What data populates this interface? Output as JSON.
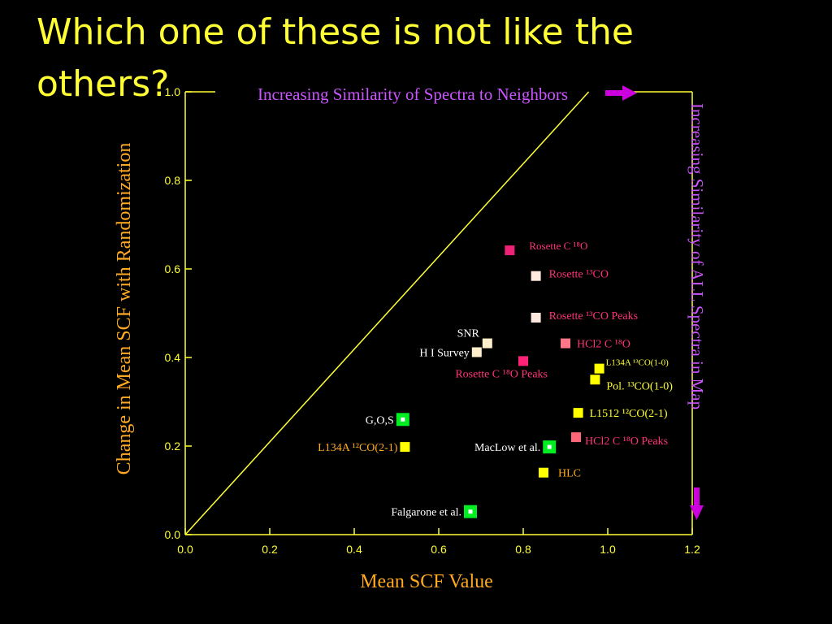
{
  "slide": {
    "title": "Which one of these is not like the others?"
  },
  "colors": {
    "axes": "#ffff33",
    "ticks_text": "#ffff33",
    "title": "#ffff33",
    "annotation": "#cc55ff",
    "arrow": "#cc00dd",
    "label_orange": "#ffaa22",
    "label_pink": "#ff3377",
    "label_white": "#ffffff"
  },
  "chart_data": {
    "type": "scatter",
    "xlabel": "Mean SCF Value",
    "ylabel": "Change in Mean SCF with Randomization",
    "xlim": [
      0.0,
      1.2
    ],
    "ylim": [
      0.0,
      1.0
    ],
    "xticks": [
      "0.0",
      "0.2",
      "0.4",
      "0.6",
      "0.8",
      "1.0",
      "1.2"
    ],
    "yticks": [
      "0.0",
      "0.2",
      "0.4",
      "0.6",
      "0.8",
      "1.0"
    ],
    "top_annotation": "Increasing Similarity of Spectra to Neighbors",
    "right_annotation": "Increasing Similarity of ALL Spectra in  Map",
    "reference_line": {
      "x": [
        0.0,
        0.955
      ],
      "y": [
        0.0,
        1.0
      ]
    },
    "points": [
      {
        "x": 0.768,
        "y": 0.642,
        "color": "#ee2277",
        "style": "solid",
        "label": "Rosette C ¹⁸O",
        "label_color": "#ff3377",
        "anchor": "right"
      },
      {
        "x": 0.83,
        "y": 0.584,
        "color": "#ffe8dd",
        "style": "solid",
        "label": "Rosette  ¹³CO",
        "label_color": "#ff3377",
        "anchor": "right"
      },
      {
        "x": 0.83,
        "y": 0.49,
        "color": "#ffe8dd",
        "style": "solid",
        "label": "Rosette  ¹³CO Peaks",
        "label_color": "#ff3377",
        "anchor": "right"
      },
      {
        "x": 0.9,
        "y": 0.432,
        "color": "#ff7788",
        "style": "solid",
        "label": "HCl2 C ¹⁸O",
        "label_color": "#ff3377",
        "anchor": "right"
      },
      {
        "x": 0.715,
        "y": 0.432,
        "color": "#ffeecc",
        "style": "solid",
        "label": "SNR",
        "label_color": "#ffffff",
        "anchor": "above-left"
      },
      {
        "x": 0.69,
        "y": 0.412,
        "color": "#ffeecc",
        "style": "solid",
        "label": "H I Survey",
        "label_color": "#ffffff",
        "anchor": "left"
      },
      {
        "x": 0.8,
        "y": 0.392,
        "color": "#ff2277",
        "style": "solid",
        "label": "Rosette C ¹⁸O Peaks",
        "label_color": "#ff3377",
        "anchor": "below-left"
      },
      {
        "x": 0.98,
        "y": 0.375,
        "color": "#ffff00",
        "style": "solid",
        "label": "L134A ¹³CO(1-0)",
        "label_color": "#ffff33",
        "anchor": "right-small"
      },
      {
        "x": 0.97,
        "y": 0.35,
        "color": "#ffff00",
        "style": "solid",
        "label": "Pol.  ¹³CO(1-0)",
        "label_color": "#ffff33",
        "anchor": "right"
      },
      {
        "x": 0.93,
        "y": 0.275,
        "color": "#ffff00",
        "style": "solid",
        "label": "L1512 ¹²CO(2-1)",
        "label_color": "#ffff33",
        "anchor": "right"
      },
      {
        "x": 0.515,
        "y": 0.26,
        "color": "#00ee22",
        "style": "dot",
        "label": "G,O,S",
        "label_color": "#ffffff",
        "anchor": "left"
      },
      {
        "x": 0.925,
        "y": 0.22,
        "color": "#ff6677",
        "style": "solid",
        "label": "HCl2 C ¹⁸O Peaks",
        "label_color": "#ff3377",
        "anchor": "right"
      },
      {
        "x": 0.52,
        "y": 0.198,
        "color": "#ffff00",
        "style": "solid",
        "label": "L134A ¹²CO(2-1)",
        "label_color": "#ffaa22",
        "anchor": "left"
      },
      {
        "x": 0.862,
        "y": 0.198,
        "color": "#00ee22",
        "style": "dot",
        "label": "MacLow et al.",
        "label_color": "#ffffff",
        "anchor": "left"
      },
      {
        "x": 0.848,
        "y": 0.14,
        "color": "#ffff00",
        "style": "solid",
        "label": "HLC",
        "label_color": "#ffaa22",
        "anchor": "right"
      },
      {
        "x": 0.675,
        "y": 0.052,
        "color": "#00ee22",
        "style": "dot",
        "label": "Falgarone et al.",
        "label_color": "#ffffff",
        "anchor": "left"
      }
    ]
  }
}
